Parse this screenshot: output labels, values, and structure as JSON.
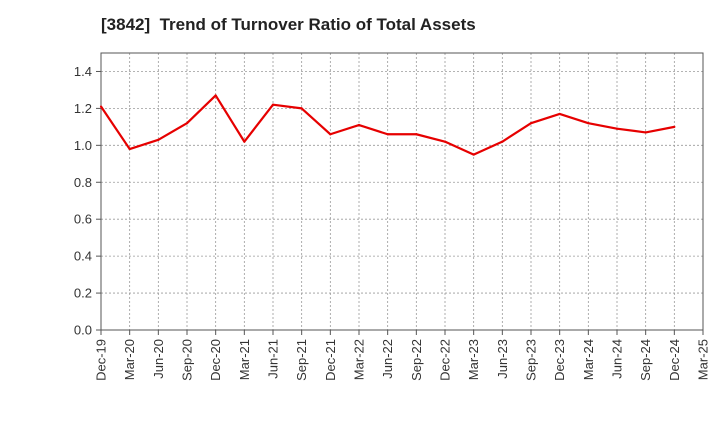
{
  "chart_data": {
    "type": "line",
    "title": "[3842]  Trend of Turnover Ratio of Total Assets",
    "xlabel": "",
    "ylabel": "",
    "ylim": [
      0,
      1.5
    ],
    "y_ticks": [
      "0.0",
      "0.2",
      "0.4",
      "0.6",
      "0.8",
      "1.0",
      "1.2",
      "1.4"
    ],
    "x_tick_labels": [
      "Dec-19",
      "Mar-20",
      "Jun-20",
      "Sep-20",
      "Dec-20",
      "Mar-21",
      "Jun-21",
      "Sep-21",
      "Dec-21",
      "Mar-22",
      "Jun-22",
      "Sep-22",
      "Dec-22",
      "Mar-23",
      "Jun-23",
      "Sep-23",
      "Dec-23",
      "Mar-24",
      "Jun-24",
      "Sep-24",
      "Dec-24",
      "Mar-25"
    ],
    "grid": true,
    "legend": "none",
    "series": [
      {
        "color": "#e60000",
        "x": [
          "Dec-19",
          "Mar-20",
          "Jun-20",
          "Sep-20",
          "Dec-20",
          "Mar-21",
          "Jun-21",
          "Sep-21",
          "Dec-21",
          "Mar-22",
          "Jun-22",
          "Sep-22",
          "Dec-22",
          "Mar-23",
          "Jun-23",
          "Sep-23",
          "Dec-23",
          "Mar-24",
          "Jun-24",
          "Sep-24",
          "Dec-24"
        ],
        "values": [
          1.21,
          0.98,
          1.03,
          1.12,
          1.27,
          1.02,
          1.22,
          1.2,
          1.06,
          1.11,
          1.06,
          1.06,
          1.02,
          0.95,
          1.02,
          1.12,
          1.17,
          1.12,
          1.09,
          1.07,
          1.1
        ]
      }
    ]
  }
}
